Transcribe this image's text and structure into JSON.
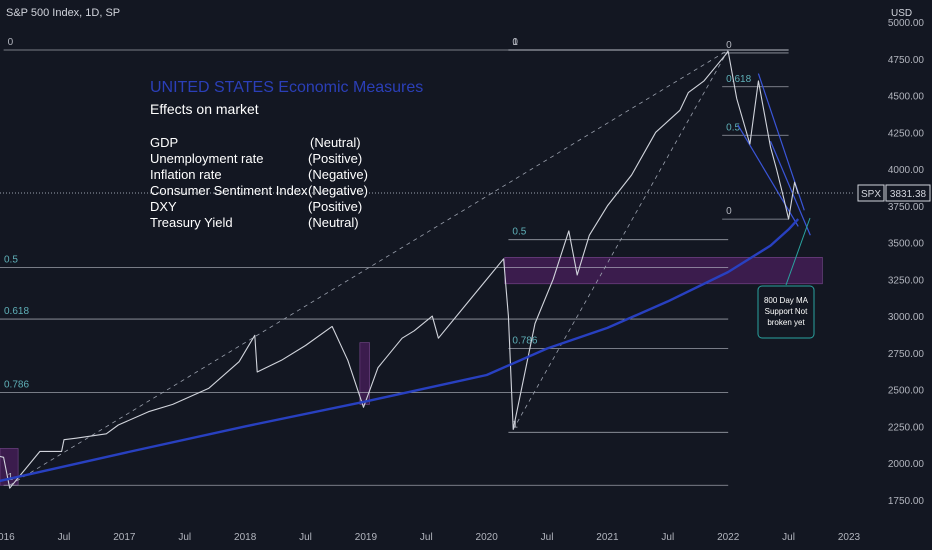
{
  "header": {
    "title": "S&P 500 Index, 1D, SP",
    "currency": "USD"
  },
  "annotation_box": {
    "heading": "UNITED STATES Economic Measures",
    "subheading": "Effects on market",
    "rows": [
      {
        "measure": "GDP",
        "effect": "(Neutral)"
      },
      {
        "measure": "Unemployment rate",
        "effect": "(Positive)"
      },
      {
        "measure": "Inflation rate",
        "effect": "(Negative)"
      },
      {
        "measure": "Consumer Sentiment Index",
        "effect": "(Negative)"
      },
      {
        "measure": "DXY",
        "effect": "(Positive)"
      },
      {
        "measure": "Treasury Yield",
        "effect": "(Neutral)"
      }
    ]
  },
  "callout": {
    "lines": [
      "800 Day MA",
      "Support Not",
      "broken yet"
    ]
  },
  "price_tag": {
    "symbol": "SPX",
    "value": "3831.38",
    "price": 3831.38
  },
  "colors": {
    "background": "#131722",
    "price_line": "#d1d4dc",
    "ma_line": "#2840c0",
    "fib_line": "#c8ccd6",
    "fib_label": "#5fb0b8",
    "zone": "#4a1f5c",
    "heading": "#2b3fb8",
    "text": "#ffffff",
    "callout_border": "#2aa3a0"
  },
  "chart_data": {
    "type": "line",
    "title": "S&P 500 Index, 1D, SP",
    "ylim": [
      1600,
      5150
    ],
    "y_ticks": [
      1750,
      2000,
      2250,
      2500,
      2750,
      3000,
      3250,
      3500,
      3750,
      4000,
      4250,
      4500,
      4750,
      5000
    ],
    "y_tick_labels": [
      "1750.00",
      "2000.00",
      "2250.00",
      "2500.00",
      "2750.00",
      "3000.00",
      "3250.00",
      "3500.00",
      "3750.00",
      "4000.00",
      "4250.00",
      "4500.00",
      "4750.00",
      "5000.00"
    ],
    "xlim": [
      2015.97,
      2023.05
    ],
    "x_ticks": [
      {
        "label": "2016",
        "x": 2016.0
      },
      {
        "label": "Jul",
        "x": 2016.5
      },
      {
        "label": "2017",
        "x": 2017.0
      },
      {
        "label": "Jul",
        "x": 2017.5
      },
      {
        "label": "2018",
        "x": 2018.0
      },
      {
        "label": "Jul",
        "x": 2018.5
      },
      {
        "label": "2019",
        "x": 2019.0
      },
      {
        "label": "Jul",
        "x": 2019.5
      },
      {
        "label": "2020",
        "x": 2020.0
      },
      {
        "label": "Jul",
        "x": 2020.5
      },
      {
        "label": "2021",
        "x": 2021.0
      },
      {
        "label": "Jul",
        "x": 2021.5
      },
      {
        "label": "2022",
        "x": 2022.0
      },
      {
        "label": "Jul",
        "x": 2022.5
      },
      {
        "label": "2023",
        "x": 2023.0
      }
    ],
    "series": [
      {
        "name": "SPX",
        "x": [
          2015.7,
          2016.0,
          2016.05,
          2016.12,
          2016.3,
          2016.48,
          2016.5,
          2016.6,
          2016.85,
          2016.95,
          2017.2,
          2017.4,
          2017.7,
          2017.95,
          2018.08,
          2018.1,
          2018.3,
          2018.5,
          2018.72,
          2018.85,
          2018.98,
          2019.1,
          2019.3,
          2019.4,
          2019.55,
          2019.6,
          2019.85,
          2020.0,
          2020.14,
          2020.18,
          2020.22,
          2020.4,
          2020.55,
          2020.68,
          2020.75,
          2020.85,
          2021.0,
          2021.2,
          2021.4,
          2021.6,
          2021.67,
          2021.8,
          2021.9,
          2022.0,
          2022.07,
          2022.18,
          2022.25,
          2022.35,
          2022.4,
          2022.46,
          2022.5,
          2022.55,
          2022.58
        ],
        "values": [
          2100,
          2040,
          1830,
          1900,
          2080,
          2080,
          2160,
          2170,
          2200,
          2260,
          2350,
          2400,
          2510,
          2690,
          2870,
          2620,
          2700,
          2800,
          2930,
          2700,
          2380,
          2650,
          2850,
          2900,
          3000,
          2850,
          3100,
          3250,
          3390,
          3000,
          2230,
          2950,
          3250,
          3580,
          3280,
          3550,
          3750,
          3960,
          4250,
          4400,
          4520,
          4600,
          4700,
          4800,
          4480,
          4170,
          4600,
          4150,
          4000,
          3800,
          3660,
          3911,
          3831
        ],
        "color": "#d1d4dc"
      },
      {
        "x": [
          2015.7,
          2017.0,
          2018.0,
          2019.0,
          2020.0,
          2020.5,
          2021.0,
          2021.5,
          2022.0,
          2022.35,
          2022.5,
          2022.58
        ],
        "values": [
          1830,
          2070,
          2250,
          2420,
          2600,
          2780,
          2920,
          3100,
          3300,
          3480,
          3590,
          3660
        ],
        "color": "#2840c0"
      }
    ],
    "fib_levels": [
      {
        "label": "0",
        "price": 4810,
        "x_start": 2016.0,
        "x_end": 2022.5
      },
      {
        "label": "0.5",
        "price": 3330,
        "x_start": 2015.97,
        "x_end": 2022.0
      },
      {
        "label": "0.618",
        "price": 2980,
        "x_start": 2015.97,
        "x_end": 2022.0
      },
      {
        "label": "0.786",
        "price": 2480,
        "x_start": 2015.97,
        "x_end": 2022.0
      },
      {
        "label": "1",
        "price": 1850,
        "x_start": 2016.0,
        "x_end": 2022.0
      },
      {
        "label": "0",
        "price": 4810,
        "x_start": 2020.18,
        "x_end": 2022.5
      },
      {
        "label": "0.5",
        "price": 3520,
        "x_start": 2020.18,
        "x_end": 2022.0
      },
      {
        "label": "0.786",
        "price": 2780,
        "x_start": 2020.18,
        "x_end": 2022.0
      },
      {
        "label": "1",
        "price": 2210,
        "x_start": 2020.18,
        "x_end": 2022.0
      },
      {
        "label": "1",
        "price": 4810,
        "x_start": 2020.18,
        "x_end": 2022.5
      },
      {
        "label": "0",
        "price": 4790,
        "x_start": 2021.95,
        "x_end": 2022.5
      },
      {
        "label": "0.618",
        "price": 4560,
        "x_start": 2021.95,
        "x_end": 2022.5
      },
      {
        "label": "0.5",
        "price": 4230,
        "x_start": 2021.95,
        "x_end": 2022.5
      },
      {
        "label": "0",
        "price": 3660,
        "x_start": 2021.95,
        "x_end": 2022.5
      }
    ],
    "zones": [
      {
        "x_start": 2015.97,
        "x_end": 2016.12,
        "price_low": 1850,
        "price_high": 2100
      },
      {
        "x_start": 2018.95,
        "x_end": 2019.03,
        "price_low": 2400,
        "price_high": 2820
      },
      {
        "x_start": 2020.15,
        "x_end": 2022.78,
        "price_low": 3220,
        "price_high": 3400
      }
    ]
  }
}
